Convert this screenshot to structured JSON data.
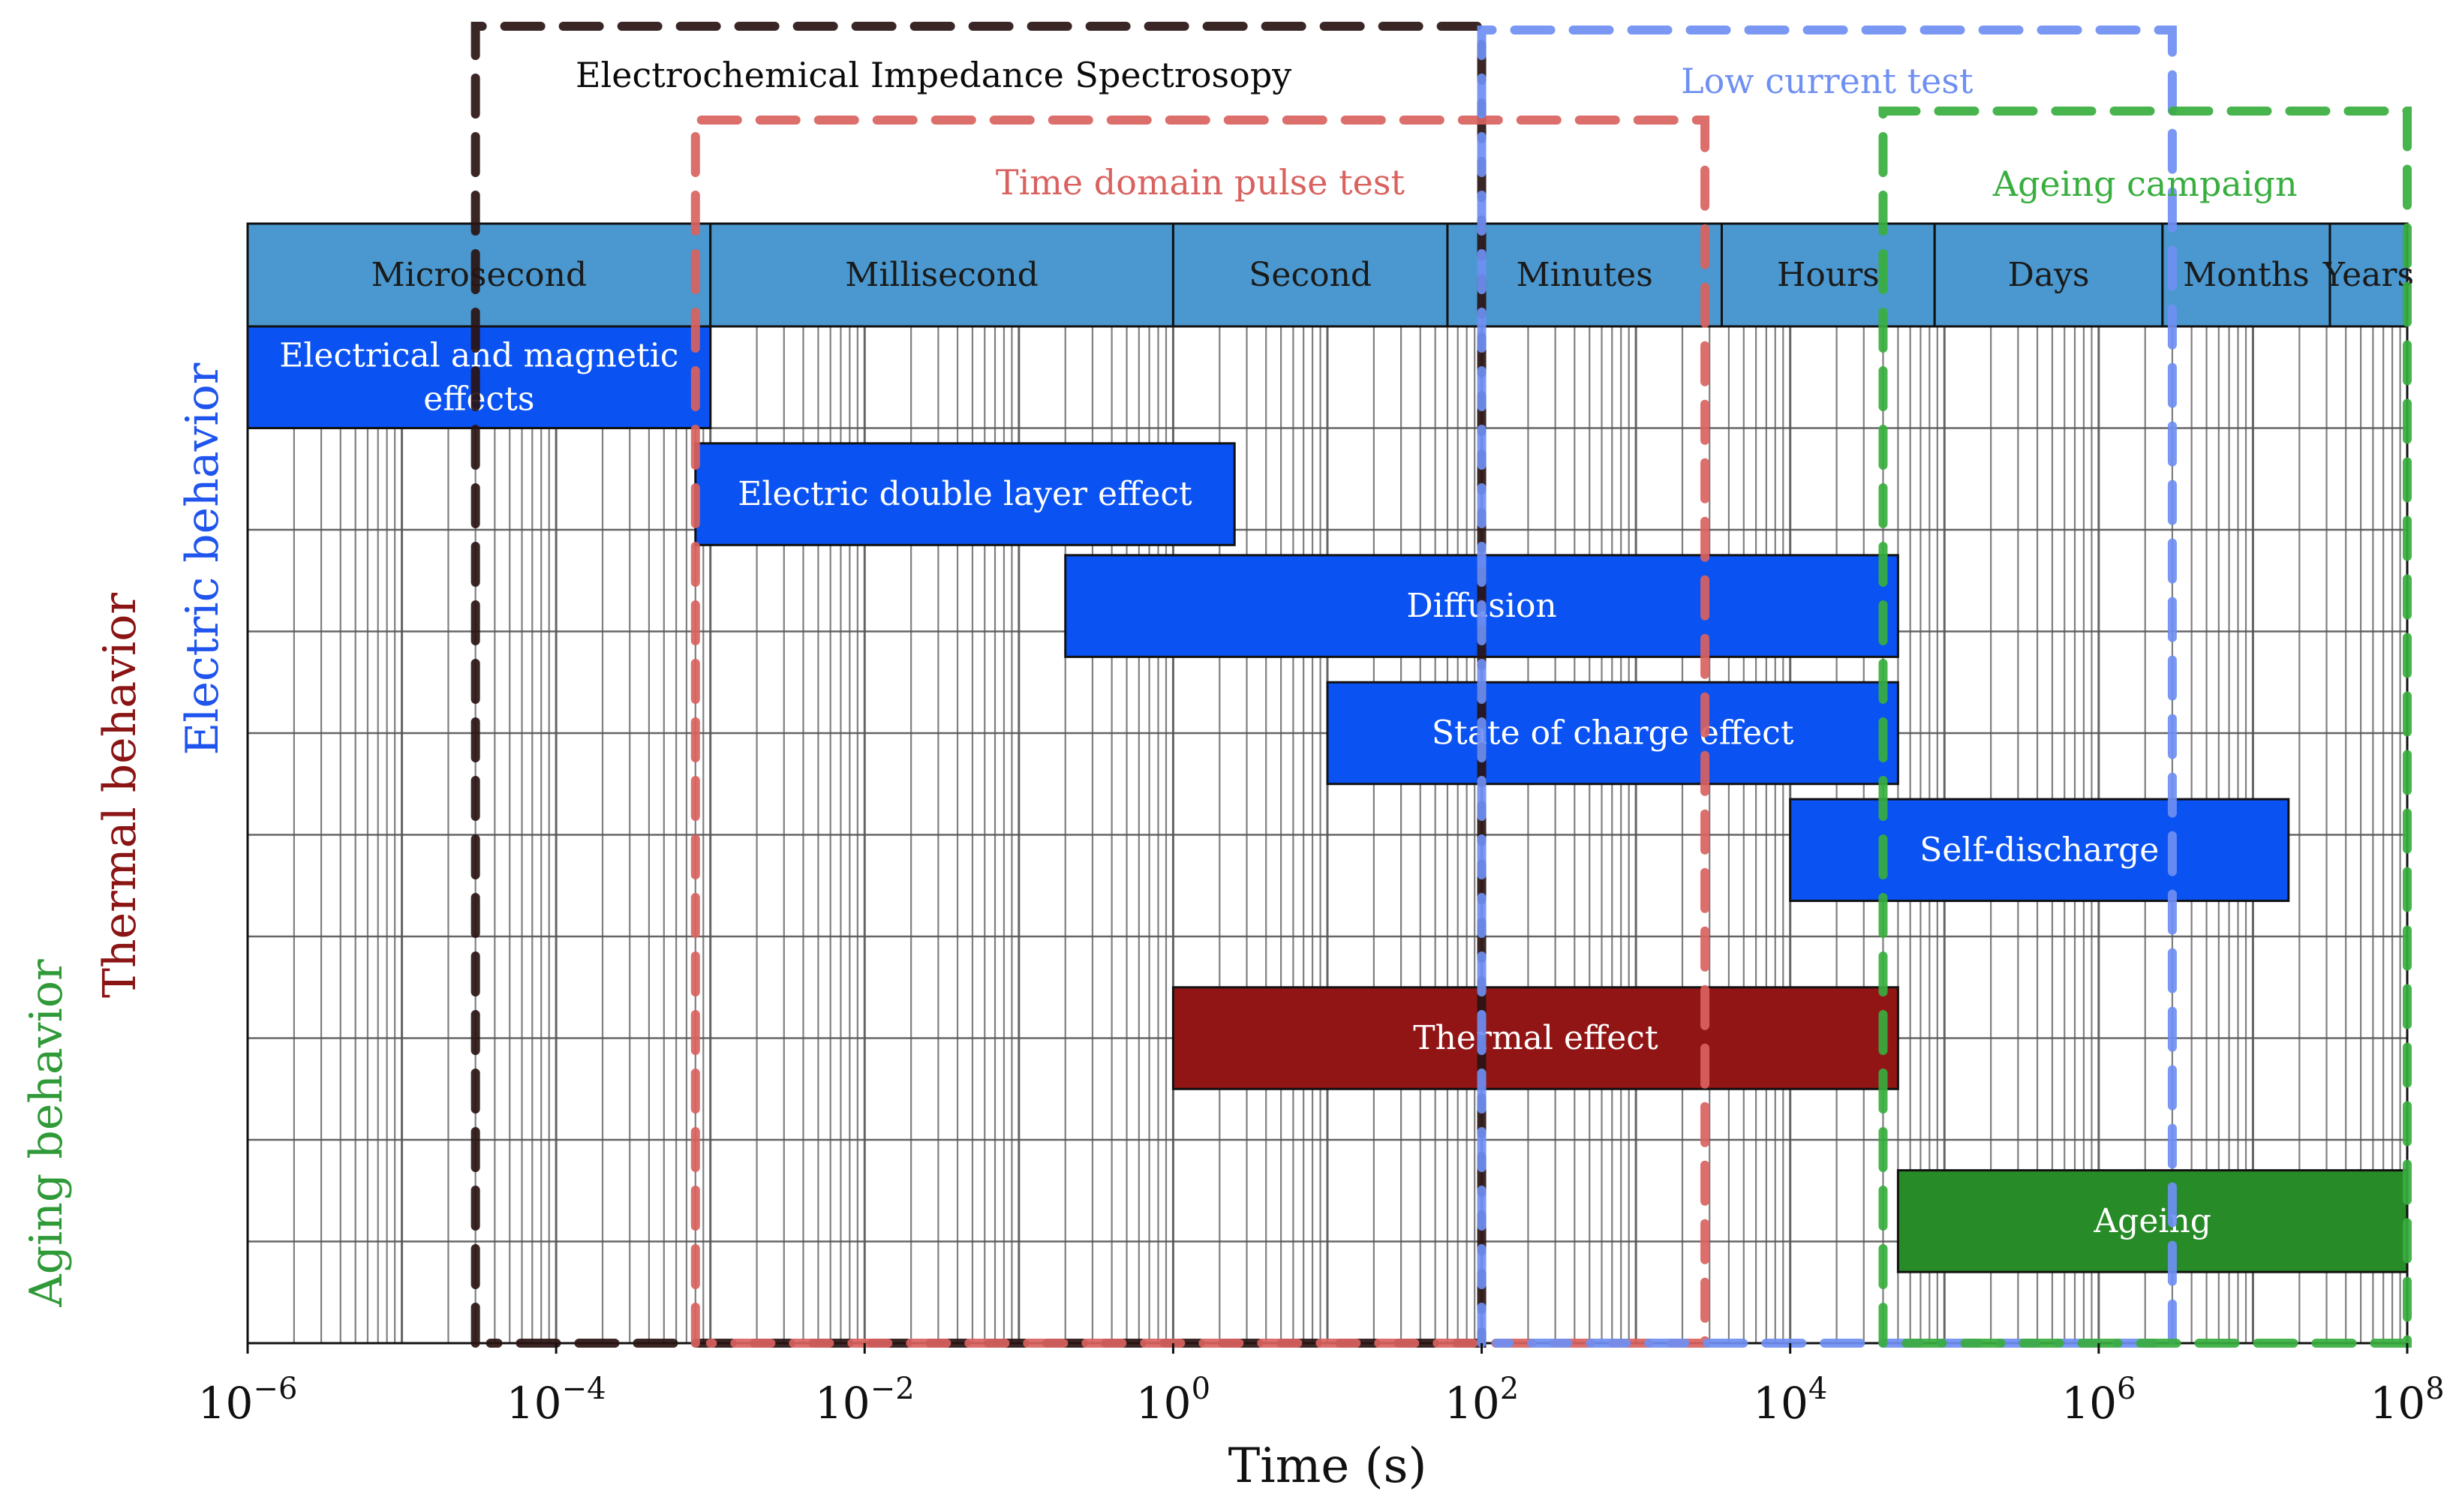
{
  "chart_data": {
    "type": "gantt",
    "x_scale": "log10",
    "xlim": [
      1e-06,
      100000000
    ],
    "xlabel": "Time (s)",
    "x_ticks": [
      {
        "value": 1e-06,
        "base": "10",
        "exp": "−6"
      },
      {
        "value": 0.0001,
        "base": "10",
        "exp": "−4"
      },
      {
        "value": 0.01,
        "base": "10",
        "exp": "−2"
      },
      {
        "value": 1,
        "base": "10",
        "exp": "0"
      },
      {
        "value": 100,
        "base": "10",
        "exp": "2"
      },
      {
        "value": 10000,
        "base": "10",
        "exp": "4"
      },
      {
        "value": 1000000,
        "base": "10",
        "exp": "6"
      },
      {
        "value": 100000000,
        "base": "10",
        "exp": "8"
      }
    ],
    "rows": 10,
    "time_scales": [
      {
        "label": "Microsecond",
        "start": 1e-06,
        "end": 0.001
      },
      {
        "label": "Millisecond",
        "start": 0.001,
        "end": 1
      },
      {
        "label": "Second",
        "start": 1,
        "end": 60
      },
      {
        "label": "Minutes",
        "start": 60,
        "end": 3600
      },
      {
        "label": "Hours",
        "start": 3600,
        "end": 86400
      },
      {
        "label": "Days",
        "start": 86400,
        "end": 2592000
      },
      {
        "label": "Months",
        "start": 2592000,
        "end": 31536000
      },
      {
        "label": "Years",
        "start": 31536000,
        "end": 100000000
      }
    ],
    "phenomena": [
      {
        "label_lines": [
          "Electrical and magnetic",
          "effects"
        ],
        "start": 1e-06,
        "end": 0.001,
        "row_start": 0,
        "row_end": 1,
        "category": "electric"
      },
      {
        "label_lines": [
          "Electric double layer effect"
        ],
        "start": 0.0008,
        "end": 2.5,
        "row_start": 1.15,
        "row_end": 2.15,
        "category": "electric"
      },
      {
        "label_lines": [
          "Diffusion"
        ],
        "start": 0.2,
        "end": 50000,
        "row_start": 2.25,
        "row_end": 3.25,
        "category": "electric"
      },
      {
        "label_lines": [
          "State of charge effect"
        ],
        "start": 10,
        "end": 50000,
        "row_start": 3.5,
        "row_end": 4.5,
        "category": "electric"
      },
      {
        "label_lines": [
          "Self-discharge"
        ],
        "start": 10000,
        "end": 17000000,
        "row_start": 4.65,
        "row_end": 5.65,
        "category": "electric"
      },
      {
        "label_lines": [
          "Thermal effect"
        ],
        "start": 1,
        "end": 50000,
        "row_start": 6.5,
        "row_end": 7.5,
        "category": "thermal"
      },
      {
        "label_lines": [
          "Ageing"
        ],
        "start": 50000,
        "end": 100000000,
        "row_start": 8.3,
        "row_end": 9.3,
        "category": "aging"
      }
    ],
    "test_methods": [
      {
        "label": "Electrochemical Impedance Spectrosopy",
        "start": 3e-05,
        "end": 100,
        "color": "#2a1414"
      },
      {
        "label": "Time domain pulse test",
        "start": 0.0008,
        "end": 2800,
        "color": "#d9625f"
      },
      {
        "label": "Low current test",
        "start": 100,
        "end": 3000000,
        "color": "#6f8ff2"
      },
      {
        "label": "Ageing campaign",
        "start": 40000,
        "end": 100000000,
        "color": "#38ae3f"
      }
    ],
    "behavior_groups": [
      {
        "label": "Electric behavior",
        "color": "#1f55ee"
      },
      {
        "label": "Thermal behavior",
        "color": "#8b1414"
      },
      {
        "label": "Aging behavior",
        "color": "#2f9a37"
      }
    ],
    "colors": {
      "electric_bar": "#0a52f2",
      "thermal_bar": "#921515",
      "aging_bar": "#278b27",
      "scale_band": "#4a98cf",
      "grid": "#555555"
    }
  }
}
